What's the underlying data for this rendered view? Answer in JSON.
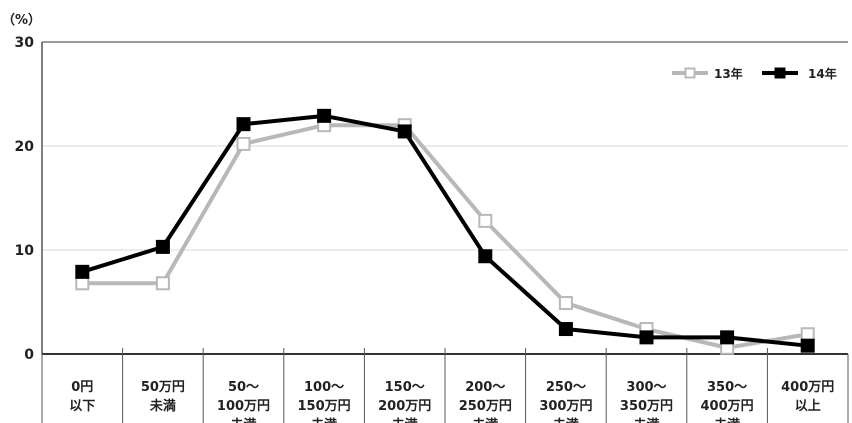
{
  "chart_data": {
    "type": "line",
    "title": "",
    "xlabel": "",
    "ylabel": "",
    "unit_label": "（%）",
    "ylim": [
      0,
      30
    ],
    "yticks": [
      "0",
      "10",
      "20",
      "30"
    ],
    "grid": true,
    "legend_position": "top-right",
    "categories": [
      [
        "0円",
        "以下"
      ],
      [
        "50万円",
        "未満"
      ],
      [
        "50～",
        "100万円",
        "未満"
      ],
      [
        "100～",
        "150万円",
        "未満"
      ],
      [
        "150～",
        "200万円",
        "未満"
      ],
      [
        "200～",
        "250万円",
        "未満"
      ],
      [
        "250～",
        "300万円",
        "未満"
      ],
      [
        "300～",
        "350万円",
        "未満"
      ],
      [
        "350～",
        "400万円",
        "未満"
      ],
      [
        "400万円",
        "以上"
      ]
    ],
    "series": [
      {
        "name": "13年",
        "color": "#b8b8b8",
        "marker": "hollow-square",
        "values": [
          6.8,
          6.8,
          20.2,
          22.0,
          22.0,
          12.8,
          4.9,
          2.4,
          0.6,
          1.9
        ]
      },
      {
        "name": "14年",
        "color": "#000000",
        "marker": "filled-square",
        "values": [
          7.9,
          10.3,
          22.1,
          22.9,
          21.4,
          9.4,
          2.4,
          1.6,
          1.6,
          0.8
        ]
      }
    ]
  }
}
